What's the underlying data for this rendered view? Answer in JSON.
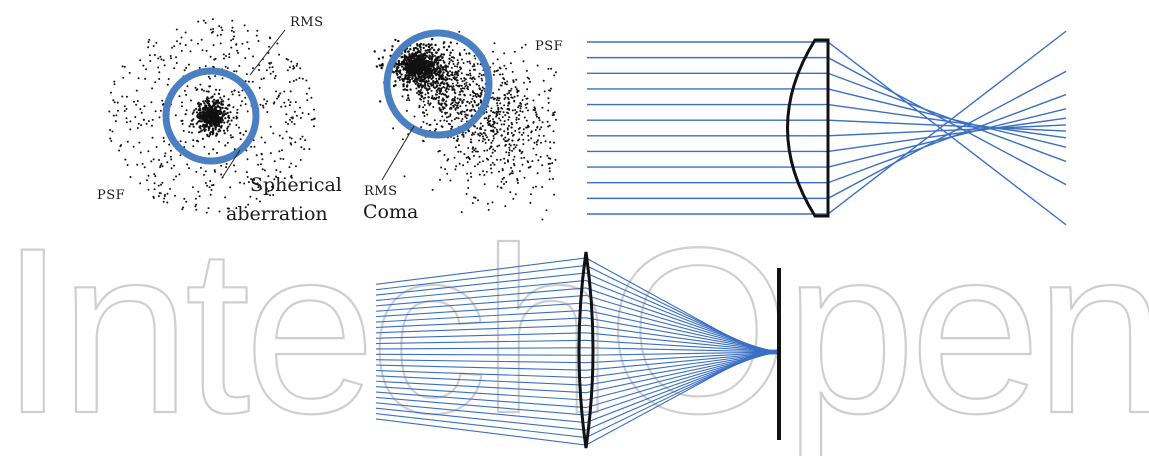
{
  "colors": {
    "ray": "#3a6fc4",
    "ring": "#4a7fc1",
    "ink": "#111111",
    "watermark": "#c8c8c8",
    "background": "#ffffff"
  },
  "watermark": {
    "text": "IntechOpen"
  },
  "panel_spherical": {
    "rms_label": "RMS",
    "psf_label": "PSF",
    "aberration_line1": "Spherical",
    "aberration_line2": "aberration"
  },
  "panel_coma": {
    "rms_label": "RMS",
    "psf_label": "PSF",
    "aberration_label": "Coma"
  },
  "panel_lens_spherical": {
    "ray_count": 12
  },
  "panel_lens_focus": {
    "ray_count": 26
  }
}
